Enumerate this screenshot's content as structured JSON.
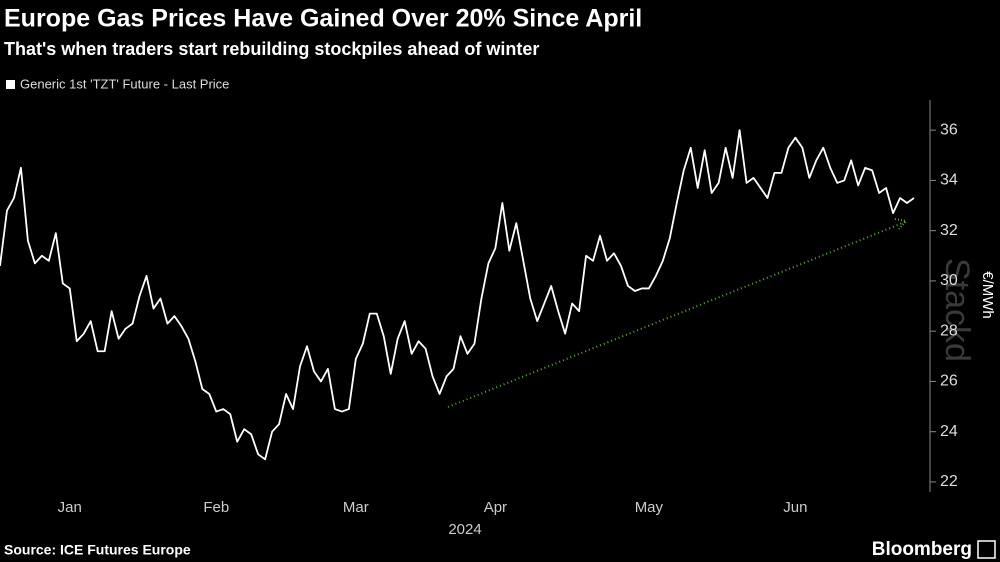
{
  "chart_data": {
    "type": "line",
    "title": "Europe Gas Prices Have Gained Over 20% Since April",
    "subtitle": "That's when traders start rebuilding stockpiles ahead of winter",
    "y_axis_label": "€/MWh",
    "x_group_label": "2024",
    "watermark": "Stackd",
    "source": "Source: ICE Futures Europe",
    "brand": "Bloomberg",
    "categories": [
      null,
      null,
      null,
      null,
      null,
      null,
      null,
      null,
      null,
      null,
      "Jan",
      null,
      null,
      null,
      null,
      null,
      null,
      null,
      null,
      null,
      null,
      null,
      null,
      null,
      null,
      null,
      null,
      null,
      null,
      null,
      null,
      "Feb",
      null,
      null,
      null,
      null,
      null,
      null,
      null,
      null,
      null,
      null,
      null,
      null,
      null,
      null,
      null,
      null,
      null,
      null,
      null,
      "Mar",
      null,
      null,
      null,
      null,
      null,
      null,
      null,
      null,
      null,
      null,
      null,
      null,
      null,
      null,
      null,
      null,
      null,
      null,
      null,
      "Apr",
      null,
      null,
      null,
      null,
      null,
      null,
      null,
      null,
      null,
      null,
      null,
      null,
      null,
      null,
      null,
      null,
      null,
      null,
      null,
      null,
      null,
      "May",
      null,
      null,
      null,
      null,
      null,
      null,
      null,
      null,
      null,
      null,
      null,
      null,
      null,
      null,
      null,
      null,
      null,
      null,
      null,
      null,
      "Jun",
      null,
      null,
      null,
      null,
      null,
      null,
      null,
      null,
      null,
      null,
      null,
      null,
      null,
      null,
      null,
      null,
      null
    ],
    "series": [
      {
        "name": "Generic 1st 'TZT' Future - Last Price",
        "color": "#ffffff",
        "values": [
          30.6,
          32.8,
          33.3,
          34.5,
          31.6,
          30.7,
          31.0,
          30.8,
          31.9,
          29.9,
          29.7,
          27.6,
          27.9,
          28.4,
          27.2,
          27.2,
          28.8,
          27.7,
          28.1,
          28.3,
          29.4,
          30.2,
          28.9,
          29.3,
          28.3,
          28.6,
          28.2,
          27.7,
          26.8,
          25.7,
          25.5,
          24.8,
          24.9,
          24.7,
          23.6,
          24.1,
          23.9,
          23.1,
          22.9,
          24.0,
          24.3,
          25.5,
          24.9,
          26.6,
          27.4,
          26.4,
          26.0,
          26.5,
          24.9,
          24.8,
          24.9,
          26.9,
          27.5,
          28.7,
          28.7,
          27.8,
          26.3,
          27.7,
          28.4,
          27.1,
          27.6,
          27.3,
          26.2,
          25.5,
          26.2,
          26.5,
          27.8,
          27.1,
          27.5,
          29.3,
          30.7,
          31.3,
          33.1,
          31.2,
          32.3,
          30.8,
          29.3,
          28.4,
          29.1,
          29.8,
          28.8,
          27.9,
          29.1,
          28.8,
          31.0,
          30.8,
          31.8,
          30.8,
          31.1,
          30.6,
          29.8,
          29.6,
          29.7,
          29.7,
          30.2,
          30.8,
          31.7,
          33.1,
          34.4,
          35.3,
          33.7,
          35.2,
          33.5,
          33.9,
          35.3,
          34.1,
          36.0,
          33.9,
          34.1,
          33.7,
          33.3,
          34.3,
          34.3,
          35.3,
          35.7,
          35.3,
          34.1,
          34.8,
          35.3,
          34.5,
          33.9,
          34.0,
          34.8,
          33.8,
          34.5,
          34.4,
          33.5,
          33.7,
          32.7,
          33.3,
          33.1,
          33.3
        ]
      }
    ],
    "ylim": [
      21.6,
      37.2
    ],
    "yticks": [
      22,
      24,
      26,
      28,
      30,
      32,
      34,
      36
    ],
    "grid": false
  }
}
